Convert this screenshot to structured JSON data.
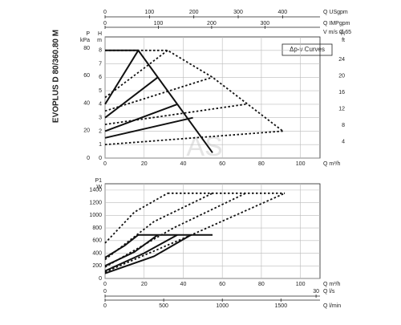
{
  "title": "EVOPLUS D 80/360.80 M",
  "chart_data": [
    {
      "type": "line",
      "legend": "Δp-v Curves",
      "watermark": "AS",
      "x_label": "Q m³/h",
      "xlim": [
        0,
        110
      ],
      "xticks": [
        0,
        20,
        40,
        60,
        80,
        100
      ],
      "x_usgpm": {
        "label": "Q USgpm",
        "lim": [
          0,
          484.3
        ],
        "ticks": [
          0,
          100,
          200,
          300,
          400
        ]
      },
      "x_impgpm": {
        "label": "Q IMPgpm",
        "lim": [
          0,
          403.3
        ],
        "ticks": [
          0,
          100,
          200,
          300
        ]
      },
      "x_velocity": {
        "label": "V m/s Ø 65"
      },
      "y_label": "H",
      "y_unit": "m",
      "ylim": [
        0,
        9
      ],
      "yticks": [
        0,
        1,
        2,
        3,
        4,
        5,
        6,
        7,
        8
      ],
      "y_kpa": {
        "label": "P",
        "unit": "kPa",
        "lim": [
          0,
          88.3
        ],
        "ticks": [
          0,
          20,
          40,
          60,
          80
        ]
      },
      "y_ft": {
        "label": "H",
        "unit": "ft",
        "lim": [
          0,
          29.53
        ],
        "ticks": [
          4,
          8,
          12,
          16,
          20,
          24
        ]
      },
      "grid": true,
      "series": [
        {
          "style": "solid",
          "color": "#111",
          "x": [
            0,
            17,
            55
          ],
          "values": [
            8,
            8,
            0.4
          ]
        },
        {
          "style": "solid",
          "color": "#111",
          "x": [
            0,
            17
          ],
          "values": [
            4,
            8
          ]
        },
        {
          "style": "solid",
          "color": "#111",
          "x": [
            0,
            27
          ],
          "values": [
            3,
            6
          ]
        },
        {
          "style": "solid",
          "color": "#111",
          "x": [
            0,
            37
          ],
          "values": [
            2,
            4
          ]
        },
        {
          "style": "solid",
          "color": "#111",
          "x": [
            0,
            45
          ],
          "values": [
            1.5,
            3
          ]
        },
        {
          "style": "dotted",
          "color": "#111",
          "x": [
            0,
            32,
            55,
            91
          ],
          "values": [
            8,
            8,
            6,
            2
          ]
        },
        {
          "style": "dotted",
          "color": "#111",
          "x": [
            0,
            32
          ],
          "values": [
            4.5,
            8
          ]
        },
        {
          "style": "dotted",
          "color": "#111",
          "x": [
            0,
            55
          ],
          "values": [
            3.5,
            6
          ]
        },
        {
          "style": "dotted",
          "color": "#111",
          "x": [
            0,
            72
          ],
          "values": [
            2.5,
            4
          ]
        },
        {
          "style": "dotted",
          "color": "#111",
          "x": [
            0,
            91
          ],
          "values": [
            1,
            2
          ]
        }
      ]
    },
    {
      "type": "line",
      "x_label": "Q m³/h",
      "xlim": [
        0,
        110
      ],
      "xticks": [
        0,
        20,
        40,
        60,
        80,
        100
      ],
      "x_ls": {
        "label": "Q l/s",
        "lim": [
          0,
          30.56
        ],
        "ticks": [
          0,
          30
        ]
      },
      "x_lmin": {
        "label": "Q l/min",
        "lim": [
          0,
          1833
        ],
        "ticks": [
          0,
          500,
          1000,
          1500
        ]
      },
      "y_label": "P1",
      "y_unit": "W",
      "ylim": [
        0,
        1500
      ],
      "yticks": [
        0,
        200,
        400,
        600,
        800,
        1000,
        1200,
        1400
      ],
      "grid": true,
      "series": [
        {
          "style": "solid",
          "color": "#111",
          "x": [
            0,
            10,
            17
          ],
          "values": [
            330,
            520,
            690
          ]
        },
        {
          "style": "solid",
          "color": "#111",
          "x": [
            0,
            15,
            27
          ],
          "values": [
            200,
            420,
            690
          ]
        },
        {
          "style": "solid",
          "color": "#111",
          "x": [
            0,
            20,
            37
          ],
          "values": [
            120,
            400,
            690
          ]
        },
        {
          "style": "solid",
          "color": "#111",
          "x": [
            0,
            25,
            44
          ],
          "values": [
            80,
            350,
            690
          ]
        },
        {
          "style": "solid",
          "color": "#111",
          "x": [
            17,
            55
          ],
          "values": [
            690,
            690
          ]
        },
        {
          "style": "dotted",
          "color": "#111",
          "x": [
            0,
            15,
            32
          ],
          "values": [
            560,
            1050,
            1350
          ]
        },
        {
          "style": "dotted",
          "color": "#111",
          "x": [
            0,
            25,
            55
          ],
          "values": [
            300,
            900,
            1350
          ]
        },
        {
          "style": "dotted",
          "color": "#111",
          "x": [
            0,
            35,
            72
          ],
          "values": [
            180,
            800,
            1350
          ]
        },
        {
          "style": "dotted",
          "color": "#111",
          "x": [
            0,
            45,
            92
          ],
          "values": [
            100,
            700,
            1350
          ]
        },
        {
          "style": "dotted",
          "color": "#111",
          "x": [
            32,
            92
          ],
          "values": [
            1350,
            1350
          ]
        }
      ]
    }
  ]
}
